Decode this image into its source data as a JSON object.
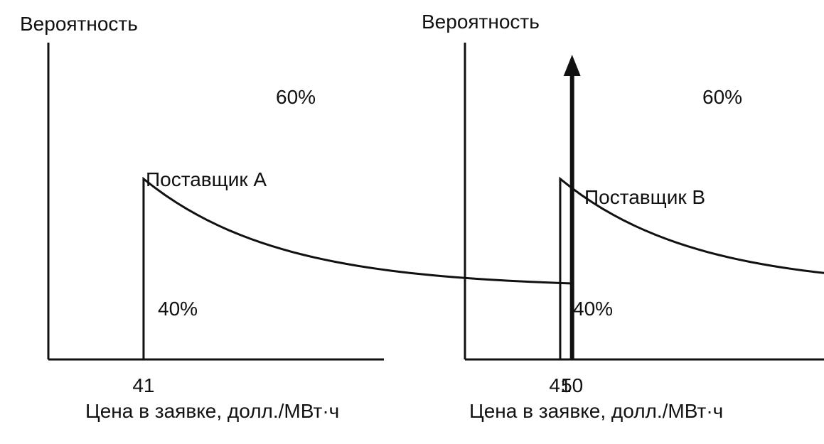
{
  "chart_data": [
    {
      "type": "line",
      "title": "",
      "ylabel": "Вероятность",
      "xlabel": "Цена в заявке, долл./МВт·ч",
      "x_ticks": [
        41,
        50
      ],
      "xlim": [
        39,
        52
      ],
      "ylim": [
        0,
        1
      ],
      "series_label": "Поставщик А",
      "continuous": {
        "x": [
          41,
          50
        ],
        "label": "40%",
        "probability": 0.4,
        "density_start": 0.57,
        "density_end": 0.24
      },
      "point_mass": {
        "x": 50,
        "label": "60%",
        "probability": 0.6
      }
    },
    {
      "type": "line",
      "title": "",
      "ylabel": "Вероятность",
      "xlabel": "Цена в заявке, долл./МВт·ч",
      "x_ticks": [
        41,
        50
      ],
      "xlim": [
        39,
        52
      ],
      "ylim": [
        0,
        1
      ],
      "series_label": "Поставщик В",
      "continuous": {
        "x": [
          41,
          49.9
        ],
        "label": "40%",
        "probability": 0.4,
        "density_start": 0.57,
        "density_end": 0.24
      },
      "point_mass": {
        "x": 50.5,
        "label": "60%",
        "probability": 0.6
      }
    }
  ]
}
